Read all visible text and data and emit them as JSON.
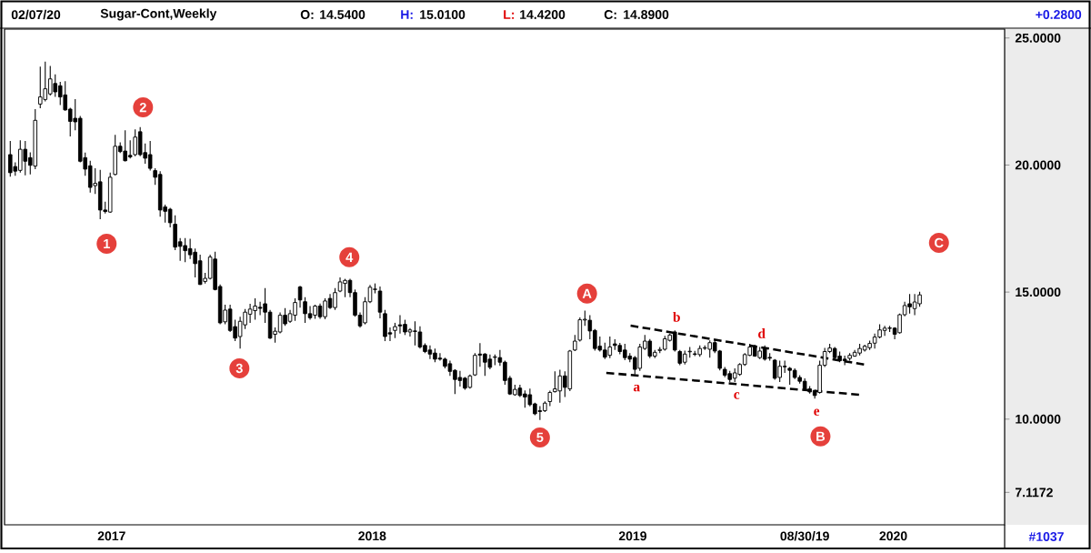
{
  "chart_data": {
    "type": "candlestick",
    "title": "Sugar-Cont,Weekly",
    "color": "#000000",
    "x": [
      "2016-08-12",
      "2016-08-19",
      "2016-08-26",
      "2016-09-02",
      "2016-09-09",
      "2016-09-16",
      "2016-09-23",
      "2016-09-30",
      "2016-10-07",
      "2016-10-14",
      "2016-10-21",
      "2016-10-28",
      "2016-11-04",
      "2016-11-11",
      "2016-11-18",
      "2016-11-25",
      "2016-12-02",
      "2016-12-09",
      "2016-12-16",
      "2016-12-23",
      "2016-12-30",
      "2017-01-06",
      "2017-01-13",
      "2017-01-20",
      "2017-01-27",
      "2017-02-03",
      "2017-02-10",
      "2017-02-17",
      "2017-02-24",
      "2017-03-03",
      "2017-03-10",
      "2017-03-17",
      "2017-03-24",
      "2017-03-31",
      "2017-04-07",
      "2017-04-14",
      "2017-04-21",
      "2017-04-28",
      "2017-05-05",
      "2017-05-12",
      "2017-05-19",
      "2017-05-26",
      "2017-06-02",
      "2017-06-09",
      "2017-06-16",
      "2017-06-23",
      "2017-06-30",
      "2017-07-07",
      "2017-07-14",
      "2017-07-21",
      "2017-07-28",
      "2017-08-04",
      "2017-08-11",
      "2017-08-18",
      "2017-08-25",
      "2017-09-01",
      "2017-09-08",
      "2017-09-15",
      "2017-09-22",
      "2017-09-29",
      "2017-10-06",
      "2017-10-13",
      "2017-10-20",
      "2017-10-27",
      "2017-11-03",
      "2017-11-10",
      "2017-11-17",
      "2017-11-24",
      "2017-12-01",
      "2017-12-08",
      "2017-12-15",
      "2017-12-22",
      "2017-12-29",
      "2018-01-05",
      "2018-01-12",
      "2018-01-19",
      "2018-01-26",
      "2018-02-02",
      "2018-02-09",
      "2018-02-16",
      "2018-02-23",
      "2018-03-02",
      "2018-03-09",
      "2018-03-16",
      "2018-03-23",
      "2018-03-30",
      "2018-04-06",
      "2018-04-13",
      "2018-04-20",
      "2018-04-27",
      "2018-05-04",
      "2018-05-11",
      "2018-05-18",
      "2018-05-25",
      "2018-06-01",
      "2018-06-08",
      "2018-06-15",
      "2018-06-22",
      "2018-06-29",
      "2018-07-06",
      "2018-07-13",
      "2018-07-20",
      "2018-07-27",
      "2018-08-03",
      "2018-08-10",
      "2018-08-17",
      "2018-08-24",
      "2018-08-31",
      "2018-09-07",
      "2018-09-14",
      "2018-09-21",
      "2018-09-28",
      "2018-10-05",
      "2018-10-12",
      "2018-10-19",
      "2018-10-26",
      "2018-11-02",
      "2018-11-09",
      "2018-11-16",
      "2018-11-23",
      "2018-11-30",
      "2018-12-07",
      "2018-12-14",
      "2018-12-21",
      "2018-12-28",
      "2019-01-04",
      "2019-01-11",
      "2019-01-18",
      "2019-01-25",
      "2019-02-01",
      "2019-02-08",
      "2019-02-15",
      "2019-02-22",
      "2019-03-01",
      "2019-03-08",
      "2019-03-15",
      "2019-03-22",
      "2019-03-29",
      "2019-04-05",
      "2019-04-12",
      "2019-04-19",
      "2019-04-26",
      "2019-05-03",
      "2019-05-10",
      "2019-05-17",
      "2019-05-24",
      "2019-05-31",
      "2019-06-07",
      "2019-06-14",
      "2019-06-21",
      "2019-06-28",
      "2019-07-05",
      "2019-07-12",
      "2019-07-19",
      "2019-07-26",
      "2019-08-02",
      "2019-08-09",
      "2019-08-16",
      "2019-08-23",
      "2019-08-30",
      "2019-09-06",
      "2019-09-13",
      "2019-09-20",
      "2019-09-27",
      "2019-10-04",
      "2019-10-11",
      "2019-10-18",
      "2019-10-25",
      "2019-11-01",
      "2019-11-08",
      "2019-11-15",
      "2019-11-22",
      "2019-11-29",
      "2019-12-06",
      "2019-12-13",
      "2019-12-20",
      "2019-12-27",
      "2020-01-03",
      "2020-01-10",
      "2020-01-17",
      "2020-01-24",
      "2020-01-31",
      "2020-02-07"
    ],
    "ohlc": [
      [
        20.41,
        20.95,
        19.54,
        19.7
      ],
      [
        19.94,
        20.11,
        19.58,
        19.76
      ],
      [
        19.79,
        20.97,
        19.7,
        20.62
      ],
      [
        20.62,
        20.95,
        19.6,
        20.15
      ],
      [
        20.29,
        20.5,
        19.63,
        19.99
      ],
      [
        19.96,
        22.2,
        19.84,
        21.76
      ],
      [
        22.4,
        23.87,
        22.24,
        22.68
      ],
      [
        22.58,
        24.07,
        22.5,
        23.0
      ],
      [
        22.8,
        23.9,
        22.74,
        23.39
      ],
      [
        23.21,
        23.57,
        22.68,
        22.88
      ],
      [
        23.12,
        23.27,
        22.36,
        22.68
      ],
      [
        22.76,
        23.3,
        22.14,
        22.17
      ],
      [
        22.2,
        22.25,
        21.13,
        21.72
      ],
      [
        21.84,
        22.59,
        21.37,
        21.7
      ],
      [
        21.84,
        21.93,
        20.11,
        20.15
      ],
      [
        20.29,
        20.49,
        19.58,
        19.84
      ],
      [
        19.97,
        20.17,
        18.92,
        19.12
      ],
      [
        19.19,
        19.87,
        18.86,
        19.28
      ],
      [
        19.34,
        19.81,
        17.87,
        18.23
      ],
      [
        18.23,
        18.56,
        18.09,
        18.17
      ],
      [
        18.15,
        19.7,
        18.12,
        19.52
      ],
      [
        19.63,
        21.19,
        19.6,
        20.74
      ],
      [
        20.74,
        20.89,
        20.47,
        20.53
      ],
      [
        20.55,
        21.37,
        20.14,
        20.17
      ],
      [
        20.38,
        20.97,
        20.26,
        20.32
      ],
      [
        20.41,
        21.4,
        20.35,
        21.1
      ],
      [
        21.31,
        21.49,
        20.35,
        20.41
      ],
      [
        20.49,
        20.85,
        20.05,
        20.27
      ],
      [
        20.41,
        20.95,
        19.78,
        19.87
      ],
      [
        19.78,
        19.87,
        19.22,
        19.52
      ],
      [
        19.63,
        19.76,
        17.97,
        18.23
      ],
      [
        18.35,
        18.44,
        17.73,
        18.18
      ],
      [
        18.26,
        18.32,
        17.55,
        17.73
      ],
      [
        17.67,
        18.02,
        16.65,
        16.77
      ],
      [
        16.98,
        17.13,
        16.23,
        16.8
      ],
      [
        16.83,
        17.13,
        16.18,
        16.63
      ],
      [
        16.71,
        17.1,
        16.3,
        16.47
      ],
      [
        16.57,
        16.71,
        15.58,
        16.12
      ],
      [
        16.23,
        16.47,
        15.28,
        15.3
      ],
      [
        15.42,
        15.76,
        15.34,
        15.54
      ],
      [
        15.54,
        16.47,
        15.5,
        16.38
      ],
      [
        16.3,
        16.59,
        15.07,
        15.1
      ],
      [
        15.22,
        15.3,
        13.73,
        13.79
      ],
      [
        13.83,
        14.5,
        13.73,
        14.29
      ],
      [
        14.33,
        14.5,
        13.43,
        13.49
      ],
      [
        13.64,
        13.91,
        13.07,
        13.19
      ],
      [
        13.25,
        14.03,
        12.78,
        13.85
      ],
      [
        13.71,
        14.33,
        13.55,
        14.21
      ],
      [
        14.13,
        14.54,
        13.79,
        14.33
      ],
      [
        14.27,
        14.75,
        13.91,
        14.45
      ],
      [
        14.4,
        14.62,
        14.09,
        14.36
      ],
      [
        14.54,
        15.16,
        13.79,
        14.21
      ],
      [
        14.21,
        14.3,
        13.15,
        13.19
      ],
      [
        13.34,
        13.61,
        13.01,
        13.46
      ],
      [
        13.43,
        14.2,
        13.38,
        14.09
      ],
      [
        14.09,
        14.37,
        13.67,
        13.75
      ],
      [
        13.85,
        14.3,
        13.79,
        14.15
      ],
      [
        14.09,
        14.75,
        13.87,
        14.59
      ],
      [
        15.2,
        15.25,
        14.39,
        14.69
      ],
      [
        14.62,
        14.8,
        13.79,
        14.15
      ],
      [
        14.15,
        14.45,
        13.91,
        13.99
      ],
      [
        14.09,
        14.5,
        13.95,
        14.45
      ],
      [
        14.45,
        14.55,
        13.95,
        14.03
      ],
      [
        14.03,
        14.75,
        13.93,
        14.65
      ],
      [
        14.75,
        14.92,
        14.33,
        14.39
      ],
      [
        14.39,
        15.16,
        14.3,
        14.98
      ],
      [
        15.04,
        15.58,
        15.0,
        15.4
      ],
      [
        15.34,
        15.52,
        14.8,
        15.46
      ],
      [
        15.46,
        15.52,
        14.8,
        14.98
      ],
      [
        14.98,
        15.1,
        14.03,
        14.09
      ],
      [
        14.09,
        14.2,
        13.6,
        13.67
      ],
      [
        13.79,
        14.8,
        13.73,
        14.62
      ],
      [
        14.62,
        15.28,
        14.57,
        15.19
      ],
      [
        15.1,
        15.34,
        14.95,
        15.12
      ],
      [
        15.04,
        15.22,
        13.97,
        14.21
      ],
      [
        14.15,
        14.3,
        13.07,
        13.25
      ],
      [
        13.4,
        13.61,
        13.07,
        13.35
      ],
      [
        13.49,
        13.79,
        13.19,
        13.64
      ],
      [
        13.71,
        14.09,
        13.37,
        13.67
      ],
      [
        13.73,
        13.91,
        13.31,
        13.43
      ],
      [
        13.43,
        13.58,
        13.25,
        13.51
      ],
      [
        13.47,
        13.85,
        12.9,
        13.45
      ],
      [
        13.43,
        13.65,
        12.78,
        12.84
      ],
      [
        12.9,
        12.98,
        12.6,
        12.66
      ],
      [
        12.72,
        12.9,
        12.36,
        12.56
      ],
      [
        12.6,
        12.78,
        12.24,
        12.36
      ],
      [
        12.4,
        12.6,
        12.3,
        12.36
      ],
      [
        12.36,
        12.42,
        12.0,
        12.08
      ],
      [
        12.18,
        12.3,
        11.7,
        11.88
      ],
      [
        11.92,
        11.96,
        10.99,
        11.56
      ],
      [
        11.64,
        11.9,
        11.28,
        11.52
      ],
      [
        11.61,
        11.66,
        11.16,
        11.22
      ],
      [
        11.25,
        11.76,
        11.2,
        11.7
      ],
      [
        11.74,
        12.6,
        11.7,
        12.51
      ],
      [
        12.56,
        12.99,
        12.06,
        12.52
      ],
      [
        12.56,
        12.6,
        11.7,
        12.24
      ],
      [
        12.36,
        12.54,
        11.96,
        12.04
      ],
      [
        12.43,
        12.54,
        12.12,
        12.45
      ],
      [
        12.42,
        12.72,
        12.1,
        12.24
      ],
      [
        12.24,
        12.3,
        11.35,
        11.52
      ],
      [
        11.61,
        11.7,
        10.95,
        10.99
      ],
      [
        10.96,
        11.35,
        10.92,
        11.17
      ],
      [
        11.22,
        11.35,
        10.87,
        10.93
      ],
      [
        10.99,
        11.13,
        10.45,
        10.87
      ],
      [
        10.96,
        11.2,
        10.5,
        10.57
      ],
      [
        10.6,
        10.65,
        10.15,
        10.21
      ],
      [
        10.33,
        10.51,
        9.97,
        10.3
      ],
      [
        10.33,
        10.7,
        10.28,
        10.63
      ],
      [
        10.69,
        11.12,
        10.51,
        11.05
      ],
      [
        11.08,
        11.88,
        11.05,
        11.19
      ],
      [
        11.11,
        11.94,
        10.65,
        11.7
      ],
      [
        11.7,
        11.88,
        10.87,
        11.25
      ],
      [
        11.19,
        12.72,
        11.1,
        12.68
      ],
      [
        12.72,
        13.31,
        12.68,
        13.07
      ],
      [
        13.11,
        14.0,
        13.05,
        13.91
      ],
      [
        13.9,
        14.27,
        13.67,
        13.93
      ],
      [
        13.89,
        14.09,
        13.14,
        13.47
      ],
      [
        13.49,
        13.55,
        12.7,
        12.78
      ],
      [
        12.87,
        13.25,
        12.66,
        12.72
      ],
      [
        12.72,
        13.01,
        12.36,
        12.44
      ],
      [
        12.51,
        13.25,
        12.4,
        12.84
      ],
      [
        12.96,
        13.14,
        12.72,
        12.9
      ],
      [
        12.9,
        13.0,
        12.55,
        12.66
      ],
      [
        12.72,
        12.96,
        12.32,
        12.42
      ],
      [
        12.48,
        12.6,
        12.24,
        12.36
      ],
      [
        12.42,
        12.48,
        11.76,
        11.96
      ],
      [
        12.0,
        12.96,
        11.9,
        12.84
      ],
      [
        12.78,
        13.31,
        12.72,
        13.07
      ],
      [
        13.07,
        13.15,
        12.4,
        12.48
      ],
      [
        12.48,
        12.72,
        12.4,
        12.63
      ],
      [
        12.7,
        12.84,
        12.6,
        12.74
      ],
      [
        12.75,
        13.28,
        12.7,
        13.16
      ],
      [
        13.1,
        13.37,
        13.05,
        13.31
      ],
      [
        13.43,
        13.49,
        12.66,
        12.72
      ],
      [
        12.66,
        12.72,
        12.12,
        12.2
      ],
      [
        12.24,
        12.7,
        12.15,
        12.56
      ],
      [
        12.65,
        12.84,
        12.42,
        12.67
      ],
      [
        12.57,
        12.69,
        12.48,
        12.55
      ],
      [
        12.54,
        12.9,
        12.45,
        12.78
      ],
      [
        12.79,
        12.9,
        12.72,
        12.81
      ],
      [
        12.75,
        13.1,
        12.42,
        13.01
      ],
      [
        13.01,
        13.14,
        12.6,
        12.68
      ],
      [
        12.68,
        12.72,
        11.92,
        12.0
      ],
      [
        11.96,
        12.05,
        11.65,
        11.73
      ],
      [
        11.79,
        11.9,
        11.46,
        11.56
      ],
      [
        11.61,
        12.0,
        11.46,
        11.82
      ],
      [
        11.76,
        12.2,
        11.7,
        12.15
      ],
      [
        12.15,
        12.6,
        12.1,
        12.54
      ],
      [
        12.51,
        12.96,
        12.48,
        12.84
      ],
      [
        12.87,
        12.93,
        12.45,
        12.48
      ],
      [
        12.42,
        12.84,
        12.36,
        12.68
      ],
      [
        12.8,
        12.9,
        12.3,
        12.36
      ],
      [
        12.43,
        12.6,
        12.3,
        12.4
      ],
      [
        12.32,
        12.36,
        11.55,
        11.61
      ],
      [
        11.64,
        12.3,
        11.46,
        12.08
      ],
      [
        12.08,
        12.3,
        11.82,
        12.06
      ],
      [
        12.0,
        12.05,
        11.35,
        11.92
      ],
      [
        11.92,
        12.0,
        11.58,
        11.64
      ],
      [
        11.64,
        11.73,
        11.4,
        11.49
      ],
      [
        11.49,
        11.6,
        11.1,
        11.17
      ],
      [
        11.19,
        11.3,
        11.0,
        11.07
      ],
      [
        11.13,
        11.15,
        10.81,
        10.93
      ],
      [
        11.05,
        12.3,
        11.0,
        12.12
      ],
      [
        12.12,
        12.8,
        12.05,
        12.66
      ],
      [
        12.66,
        12.96,
        12.6,
        12.8
      ],
      [
        12.78,
        12.84,
        12.36,
        12.42
      ],
      [
        12.48,
        12.66,
        12.24,
        12.3
      ],
      [
        12.36,
        12.5,
        12.12,
        12.3
      ],
      [
        12.39,
        12.6,
        12.3,
        12.51
      ],
      [
        12.48,
        12.72,
        12.45,
        12.63
      ],
      [
        12.6,
        12.96,
        12.51,
        12.78
      ],
      [
        12.72,
        12.93,
        12.66,
        12.87
      ],
      [
        12.81,
        13.09,
        12.72,
        12.98
      ],
      [
        12.99,
        13.37,
        12.78,
        13.23
      ],
      [
        13.23,
        13.73,
        13.18,
        13.51
      ],
      [
        13.49,
        13.67,
        13.28,
        13.58
      ],
      [
        13.57,
        13.67,
        13.43,
        13.59
      ],
      [
        13.58,
        13.62,
        13.14,
        13.34
      ],
      [
        13.4,
        14.15,
        13.37,
        14.11
      ],
      [
        14.11,
        14.62,
        14.05,
        14.47
      ],
      [
        14.54,
        14.92,
        14.15,
        14.42
      ],
      [
        14.35,
        14.92,
        14.09,
        14.61
      ],
      [
        14.54,
        15.01,
        14.42,
        14.89
      ]
    ],
    "series": [
      {
        "type": "line",
        "x": [
          "2018-12-29",
          "2019-11-21"
        ],
        "values": [
          13.68,
          12.15
        ],
        "color": "#000000",
        "line_style": "dashed"
      },
      {
        "type": "line",
        "x": [
          "2018-11-25",
          "2019-11-14"
        ],
        "values": [
          11.82,
          10.96
        ],
        "color": "#000000",
        "line_style": "dashed"
      }
    ],
    "xlim": [
      "2016-08-04",
      "2020-06-05"
    ],
    "xticks": [
      {
        "value": "2017-01-01",
        "label": "2017"
      },
      {
        "value": "2018-01-01",
        "label": "2018"
      },
      {
        "value": "2019-01-01",
        "label": "2019"
      },
      {
        "value": "2019-08-30",
        "label": "08/30/19"
      },
      {
        "value": "2020-01-01",
        "label": "2020"
      }
    ],
    "ylim": [
      5.84,
      25.35
    ],
    "yticks": [
      {
        "value": 7.1172,
        "label": "7.1172"
      },
      {
        "value": 10,
        "label": "10.0000"
      },
      {
        "value": 15,
        "label": "15.0000"
      },
      {
        "value": 20,
        "label": "20.0000"
      },
      {
        "value": 25,
        "label": "25.0000"
      }
    ],
    "annotations": [
      "02/07/20",
      "O:",
      "14.5400",
      "H:",
      "15.0100",
      "L:",
      "14.4200",
      "C:",
      "14.8900",
      "+0.2800",
      "#1037",
      {
        "text": "1",
        "x": "2016-12-25",
        "y": 16.9
      },
      {
        "text": "2",
        "x": "2017-02-14",
        "y": 22.27
      },
      {
        "text": "3",
        "x": "2017-06-29",
        "y": 12.0
      },
      {
        "text": "4",
        "x": "2017-11-30",
        "y": 16.37
      },
      {
        "text": "5",
        "x": "2018-08-24",
        "y": 9.28
      },
      {
        "text": "A",
        "x": "2018-10-29",
        "y": 14.94
      },
      {
        "text": "B",
        "x": "2019-09-21",
        "y": 9.32
      },
      {
        "text": "C",
        "x": "2020-03-05",
        "y": 16.94
      },
      {
        "text": "a",
        "x": "2019-01-04",
        "y": 11.76
      },
      {
        "text": "b",
        "x": "2019-03-01",
        "y": 13.49
      },
      {
        "text": "c",
        "x": "2019-05-24",
        "y": 11.46
      },
      {
        "text": "d",
        "x": "2019-06-28",
        "y": 12.84
      },
      {
        "text": "e",
        "x": "2019-09-13",
        "y": 10.81
      }
    ]
  }
}
